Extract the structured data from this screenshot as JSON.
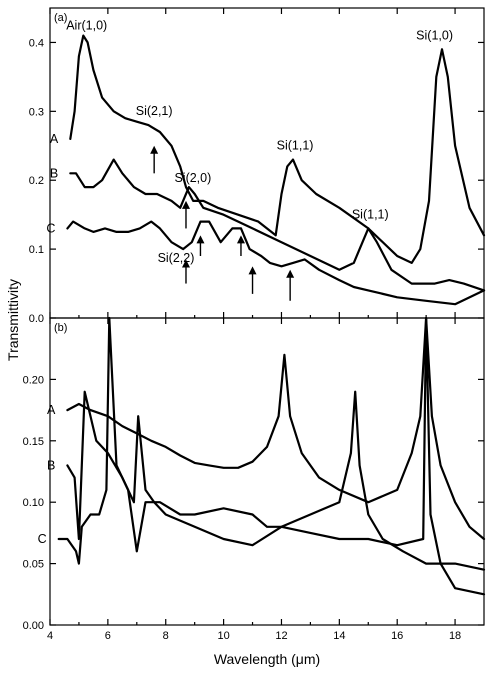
{
  "chart_data": [
    {
      "panel": "(a)",
      "type": "line",
      "xlim": [
        4,
        19
      ],
      "ylim": [
        0,
        0.45
      ],
      "xticks": [
        "4",
        "6",
        "8",
        "10",
        "12",
        "14",
        "16",
        "18"
      ],
      "yticks": [
        "0.0",
        "0.1",
        "0.2",
        "0.3",
        "0.4"
      ],
      "series": [
        {
          "name": "A",
          "points": [
            [
              4.7,
              0.26
            ],
            [
              4.85,
              0.3
            ],
            [
              5.0,
              0.38
            ],
            [
              5.15,
              0.41
            ],
            [
              5.3,
              0.4
            ],
            [
              5.5,
              0.36
            ],
            [
              5.8,
              0.32
            ],
            [
              6.2,
              0.3
            ],
            [
              6.6,
              0.29
            ],
            [
              7.0,
              0.285
            ],
            [
              7.4,
              0.28
            ],
            [
              7.8,
              0.27
            ],
            [
              8.2,
              0.25
            ],
            [
              8.5,
              0.22
            ],
            [
              8.7,
              0.19
            ],
            [
              8.95,
              0.17
            ],
            [
              9.3,
              0.17
            ],
            [
              9.8,
              0.16
            ],
            [
              10.5,
              0.15
            ],
            [
              11.2,
              0.14
            ],
            [
              11.8,
              0.12
            ],
            [
              12.0,
              0.18
            ],
            [
              12.2,
              0.22
            ],
            [
              12.4,
              0.23
            ],
            [
              12.7,
              0.2
            ],
            [
              13.2,
              0.18
            ],
            [
              14.0,
              0.16
            ],
            [
              15.0,
              0.13
            ],
            [
              16.0,
              0.09
            ],
            [
              16.5,
              0.08
            ],
            [
              16.8,
              0.1
            ],
            [
              17.1,
              0.17
            ],
            [
              17.35,
              0.35
            ],
            [
              17.55,
              0.39
            ],
            [
              17.75,
              0.35
            ],
            [
              18.0,
              0.25
            ],
            [
              18.5,
              0.16
            ],
            [
              19.0,
              0.12
            ]
          ]
        },
        {
          "name": "B",
          "points": [
            [
              4.7,
              0.21
            ],
            [
              4.9,
              0.21
            ],
            [
              5.2,
              0.19
            ],
            [
              5.5,
              0.19
            ],
            [
              5.8,
              0.2
            ],
            [
              6.2,
              0.23
            ],
            [
              6.5,
              0.21
            ],
            [
              6.9,
              0.19
            ],
            [
              7.3,
              0.18
            ],
            [
              7.7,
              0.18
            ],
            [
              8.2,
              0.17
            ],
            [
              8.5,
              0.16
            ],
            [
              8.8,
              0.19
            ],
            [
              9.0,
              0.18
            ],
            [
              9.3,
              0.16
            ],
            [
              10.0,
              0.15
            ],
            [
              11.0,
              0.13
            ],
            [
              12.0,
              0.11
            ],
            [
              13.0,
              0.09
            ],
            [
              14.0,
              0.07
            ],
            [
              14.5,
              0.08
            ],
            [
              14.8,
              0.11
            ],
            [
              15.0,
              0.13
            ],
            [
              15.3,
              0.11
            ],
            [
              15.8,
              0.07
            ],
            [
              16.5,
              0.05
            ],
            [
              17.3,
              0.05
            ],
            [
              17.8,
              0.055
            ],
            [
              18.3,
              0.05
            ],
            [
              19.0,
              0.04
            ]
          ]
        },
        {
          "name": "C",
          "points": [
            [
              4.6,
              0.13
            ],
            [
              4.8,
              0.14
            ],
            [
              5.2,
              0.13
            ],
            [
              5.5,
              0.125
            ],
            [
              5.9,
              0.13
            ],
            [
              6.3,
              0.125
            ],
            [
              6.7,
              0.125
            ],
            [
              7.1,
              0.13
            ],
            [
              7.5,
              0.14
            ],
            [
              7.8,
              0.13
            ],
            [
              8.2,
              0.11
            ],
            [
              8.6,
              0.1
            ],
            [
              8.9,
              0.11
            ],
            [
              9.2,
              0.14
            ],
            [
              9.5,
              0.14
            ],
            [
              9.9,
              0.11
            ],
            [
              10.3,
              0.13
            ],
            [
              10.6,
              0.13
            ],
            [
              10.9,
              0.1
            ],
            [
              11.3,
              0.09
            ],
            [
              11.6,
              0.08
            ],
            [
              12.0,
              0.075
            ],
            [
              12.4,
              0.08
            ],
            [
              12.8,
              0.085
            ],
            [
              13.3,
              0.07
            ],
            [
              14.0,
              0.055
            ],
            [
              14.5,
              0.045
            ],
            [
              15.0,
              0.04
            ],
            [
              16.0,
              0.03
            ],
            [
              17.0,
              0.025
            ],
            [
              18.0,
              0.02
            ],
            [
              19.0,
              0.04
            ]
          ]
        }
      ],
      "annotations": [
        {
          "text": "Air(1,0)",
          "x": 5.2,
          "y": 0.41
        },
        {
          "text": "Si(2,1)",
          "x": 7.6,
          "y": 0.28
        },
        {
          "text": "Si(2,0)",
          "x": 8.8,
          "y": 0.18
        },
        {
          "text": "Si(1,1)",
          "x": 12.4,
          "y": 0.23
        },
        {
          "text": "Si(1,1)",
          "x": 15.0,
          "y": 0.13
        },
        {
          "text": "Si(1,0)",
          "x": 17.5,
          "y": 0.39
        },
        {
          "text": "Si(2,2)",
          "x": 8.7,
          "y": 0.09
        }
      ],
      "arrows": [
        [
          7.6,
          0.21,
          0.25
        ],
        [
          8.7,
          0.13,
          0.17
        ],
        [
          9.2,
          0.09,
          0.12
        ],
        [
          10.6,
          0.09,
          0.12
        ],
        [
          11.0,
          0.035,
          0.075
        ],
        [
          8.7,
          0.05,
          0.085
        ],
        [
          12.3,
          0.025,
          0.07
        ]
      ]
    },
    {
      "panel": "(b)",
      "type": "line",
      "xlim": [
        4,
        19
      ],
      "ylim": [
        0,
        0.25
      ],
      "xticks": [
        "4",
        "6",
        "8",
        "10",
        "12",
        "14",
        "16",
        "18"
      ],
      "yticks": [
        "0.00",
        "0.05",
        "0.10",
        "0.15",
        "0.20"
      ],
      "series": [
        {
          "name": "A",
          "points": [
            [
              4.6,
              0.175
            ],
            [
              5.0,
              0.18
            ],
            [
              5.4,
              0.175
            ],
            [
              6.0,
              0.17
            ],
            [
              6.5,
              0.162
            ],
            [
              7.0,
              0.156
            ],
            [
              7.5,
              0.15
            ],
            [
              8.0,
              0.145
            ],
            [
              8.5,
              0.138
            ],
            [
              9.0,
              0.132
            ],
            [
              9.5,
              0.13
            ],
            [
              10.0,
              0.128
            ],
            [
              10.5,
              0.128
            ],
            [
              11.0,
              0.133
            ],
            [
              11.5,
              0.145
            ],
            [
              11.9,
              0.17
            ],
            [
              12.1,
              0.22
            ],
            [
              12.3,
              0.17
            ],
            [
              12.7,
              0.14
            ],
            [
              13.3,
              0.12
            ],
            [
              14.0,
              0.11
            ],
            [
              15.0,
              0.1
            ],
            [
              16.0,
              0.11
            ],
            [
              16.5,
              0.14
            ],
            [
              16.8,
              0.17
            ],
            [
              17.0,
              0.25
            ],
            [
              17.2,
              0.17
            ],
            [
              17.5,
              0.13
            ],
            [
              18.0,
              0.1
            ],
            [
              18.5,
              0.08
            ],
            [
              19.0,
              0.07
            ]
          ]
        },
        {
          "name": "B",
          "points": [
            [
              4.6,
              0.13
            ],
            [
              4.85,
              0.12
            ],
            [
              5.0,
              0.07
            ],
            [
              5.2,
              0.19
            ],
            [
              5.6,
              0.15
            ],
            [
              6.0,
              0.14
            ],
            [
              6.5,
              0.12
            ],
            [
              6.9,
              0.1
            ],
            [
              7.05,
              0.17
            ],
            [
              7.3,
              0.11
            ],
            [
              7.6,
              0.1
            ],
            [
              8.0,
              0.09
            ],
            [
              8.5,
              0.085
            ],
            [
              9.0,
              0.08
            ],
            [
              10.0,
              0.07
            ],
            [
              11.0,
              0.065
            ],
            [
              12.0,
              0.08
            ],
            [
              13.0,
              0.09
            ],
            [
              14.0,
              0.1
            ],
            [
              14.4,
              0.14
            ],
            [
              14.55,
              0.19
            ],
            [
              14.7,
              0.13
            ],
            [
              15.0,
              0.09
            ],
            [
              15.5,
              0.07
            ],
            [
              16.2,
              0.06
            ],
            [
              17.0,
              0.05
            ],
            [
              18.0,
              0.05
            ],
            [
              19.0,
              0.045
            ]
          ]
        },
        {
          "name": "C",
          "points": [
            [
              4.3,
              0.07
            ],
            [
              4.6,
              0.07
            ],
            [
              4.9,
              0.06
            ],
            [
              5.0,
              0.05
            ],
            [
              5.1,
              0.08
            ],
            [
              5.4,
              0.09
            ],
            [
              5.7,
              0.09
            ],
            [
              5.95,
              0.11
            ],
            [
              6.05,
              0.25
            ],
            [
              6.3,
              0.13
            ],
            [
              6.7,
              0.11
            ],
            [
              7.0,
              0.06
            ],
            [
              7.3,
              0.1
            ],
            [
              7.8,
              0.1
            ],
            [
              8.5,
              0.09
            ],
            [
              9.0,
              0.09
            ],
            [
              10.0,
              0.095
            ],
            [
              11.0,
              0.09
            ],
            [
              11.5,
              0.08
            ],
            [
              12.0,
              0.08
            ],
            [
              13.0,
              0.075
            ],
            [
              14.0,
              0.07
            ],
            [
              15.0,
              0.07
            ],
            [
              16.0,
              0.065
            ],
            [
              16.9,
              0.07
            ],
            [
              17.0,
              0.25
            ],
            [
              17.15,
              0.09
            ],
            [
              17.5,
              0.05
            ],
            [
              18.0,
              0.03
            ],
            [
              19.0,
              0.025
            ]
          ]
        }
      ]
    }
  ],
  "xlabel": "Wavelength (μm)",
  "ylabel": "Transmittivity"
}
